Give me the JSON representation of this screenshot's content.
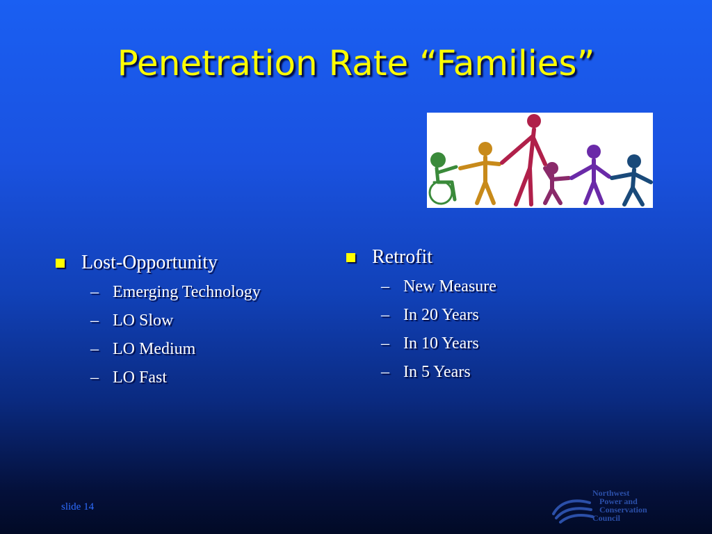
{
  "slide": {
    "title": "Penetration Rate “Families”",
    "number_label": "slide 14",
    "left_column": {
      "bullet": "Lost-Opportunity",
      "items": [
        "Emerging Technology",
        "LO Slow",
        "LO Medium",
        "LO Fast"
      ]
    },
    "right_column": {
      "bullet": "Retrofit",
      "items": [
        "New Measure",
        "In 20 Years",
        "In 10 Years",
        "In 5 Years"
      ]
    },
    "logo": {
      "lines": [
        "Northwest",
        "Power and",
        "Conservation",
        "Council"
      ]
    },
    "clipart": {
      "icon": "family-holding-hands",
      "figure_colors": [
        "#3a8a3a",
        "#c88a1a",
        "#b0204a",
        "#8a2a6a",
        "#6a2aa8",
        "#1a4a7a"
      ]
    }
  },
  "colors": {
    "title": "#ffff00",
    "text": "#ffffff",
    "bullet": "#ffff00",
    "slide_number": "#2e6cff",
    "logo": "#2b4fa8"
  }
}
